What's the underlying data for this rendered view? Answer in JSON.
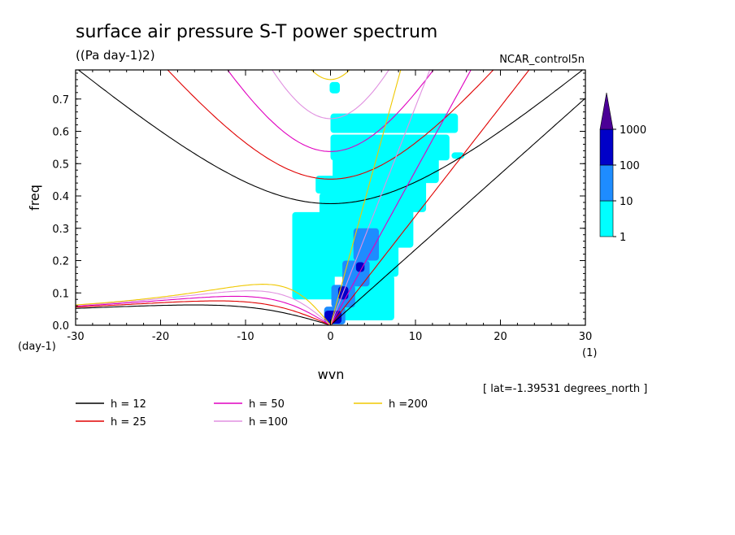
{
  "chart_data": {
    "type": "heatmap",
    "title": "surface air pressure S-T power spectrum",
    "subtitle": "((Pa day-1)2)",
    "source_label": "NCAR_control5n",
    "xlabel": "wvn",
    "ylabel": "freq",
    "x_unit": "(1)",
    "y_unit": "(day-1)",
    "xlim": [
      -30,
      30
    ],
    "ylim": [
      0,
      0.79
    ],
    "x_ticks": [
      "-30",
      "-20",
      "-10",
      "0",
      "10",
      "20",
      "30"
    ],
    "y_ticks": [
      "0.0",
      "0.1",
      "0.2",
      "0.3",
      "0.4",
      "0.5",
      "0.6",
      "0.7"
    ],
    "x_tick_values": [
      -30,
      -20,
      -10,
      0,
      10,
      20,
      30
    ],
    "y_tick_values": [
      0,
      0.1,
      0.2,
      0.3,
      0.4,
      0.5,
      0.6,
      0.7
    ],
    "colorbar": {
      "levels": [
        "1",
        "10",
        "100",
        "1000"
      ],
      "colors": [
        "#00ffff",
        "#1e8cff",
        "#0000c8",
        "#4b0096"
      ]
    },
    "heat_regions": [
      {
        "level": 1,
        "x": -0.5,
        "y": 0.435,
        "w": 2.5,
        "h": 0.055
      },
      {
        "level": 1,
        "x": 0.2,
        "y": 0.365,
        "w": 3.0,
        "h": 0.09
      },
      {
        "level": 1,
        "x": 0.5,
        "y": 0.735,
        "w": 1.2,
        "h": 0.035
      },
      {
        "level": 1,
        "x": 4.5,
        "y": 0.085,
        "w": 6.0,
        "h": 0.14
      },
      {
        "level": 1,
        "x": 4.0,
        "y": 0.21,
        "w": 8.0,
        "h": 0.12
      },
      {
        "level": 1,
        "x": 5.0,
        "y": 0.3,
        "w": 9.5,
        "h": 0.12
      },
      {
        "level": 1,
        "x": 5.5,
        "y": 0.4,
        "w": 11.5,
        "h": 0.1
      },
      {
        "level": 1,
        "x": 6.5,
        "y": 0.48,
        "w": 12.5,
        "h": 0.08
      },
      {
        "level": 1,
        "x": 7.0,
        "y": 0.55,
        "w": 14.0,
        "h": 0.08
      },
      {
        "level": 1,
        "x": 7.5,
        "y": 0.625,
        "w": 15.0,
        "h": 0.06
      },
      {
        "level": 1,
        "x": 15.0,
        "y": 0.525,
        "w": 1.5,
        "h": 0.02
      },
      {
        "level": 1,
        "x": -2.0,
        "y": 0.215,
        "w": 5.0,
        "h": 0.27
      },
      {
        "level": 2,
        "x": 0.5,
        "y": 0.03,
        "w": 2.5,
        "h": 0.055
      },
      {
        "level": 2,
        "x": 1.5,
        "y": 0.09,
        "w": 2.8,
        "h": 0.07
      },
      {
        "level": 2,
        "x": 3.0,
        "y": 0.16,
        "w": 3.2,
        "h": 0.08
      },
      {
        "level": 2,
        "x": 4.2,
        "y": 0.25,
        "w": 3.0,
        "h": 0.1
      },
      {
        "level": 3,
        "x": 0.3,
        "y": 0.025,
        "w": 2.0,
        "h": 0.04
      },
      {
        "level": 3,
        "x": 1.5,
        "y": 0.1,
        "w": 1.2,
        "h": 0.04
      },
      {
        "level": 3,
        "x": 3.5,
        "y": 0.18,
        "w": 1.0,
        "h": 0.03
      }
    ],
    "dispersion_curves": {
      "legend": [
        {
          "label": "h = 12",
          "color": "#000000"
        },
        {
          "label": "h = 25",
          "color": "#e00000"
        },
        {
          "label": "h = 50",
          "color": "#e000c0"
        },
        {
          "label": "h =100",
          "color": "#e090e0"
        },
        {
          "label": "h =200",
          "color": "#f0c800"
        }
      ]
    },
    "annotation": "[ lat=-1.39531 degrees_north ]"
  }
}
